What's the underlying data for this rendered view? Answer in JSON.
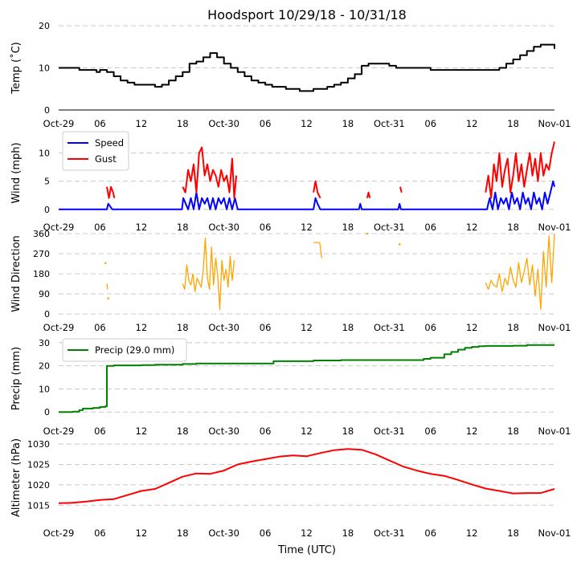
{
  "title": "Hoodsport 10/29/18 - 10/31/18",
  "xlabel": "Time (UTC)",
  "x_ticks": [
    "Oct-29",
    "06",
    "12",
    "18",
    "Oct-30",
    "06",
    "12",
    "18",
    "Oct-31",
    "06",
    "12",
    "18",
    "Nov-01"
  ],
  "x_unit": "hours since 2018-10-29 00:00 UTC",
  "colors": {
    "temp": "#000000",
    "speed": "#0000ff",
    "gust": "#ff0000",
    "direction": "#ffa500",
    "precip": "#008000",
    "altimeter": "#ff0000",
    "grid": "#c8c8c8"
  },
  "chart_data": [
    {
      "type": "line",
      "id": "temp",
      "ylabel": "Temp ($^\\circ$C)",
      "ylabel_text": "Temp (˚C)",
      "ylim": [
        0,
        20
      ],
      "yticks": [
        0,
        10,
        20
      ],
      "xlim": [
        0,
        72
      ],
      "grid": "y-dashed",
      "series": [
        {
          "name": "Temp",
          "color": "#000000",
          "x": [
            0,
            2,
            3,
            5,
            5.5,
            6,
            6.5,
            7,
            8,
            9,
            10,
            11,
            12,
            13,
            14,
            15,
            16,
            17,
            18,
            19,
            20,
            21,
            22,
            22.5,
            23,
            24,
            25,
            26,
            27,
            28,
            29,
            30,
            31,
            32,
            33,
            34,
            35,
            36,
            37,
            38,
            39,
            40,
            41,
            42,
            43,
            44,
            45,
            46,
            47,
            48,
            49,
            50,
            51,
            52,
            53,
            54,
            55,
            56,
            57,
            58,
            59,
            60,
            61,
            62,
            63,
            64,
            65,
            66,
            67,
            68,
            69,
            70,
            71,
            72
          ],
          "y": [
            10,
            10,
            9.5,
            9.5,
            9,
            9.5,
            9.5,
            9,
            8,
            7,
            6.5,
            6,
            6,
            6,
            5.5,
            6,
            7,
            8,
            9,
            11,
            11.5,
            12.5,
            13.5,
            13.5,
            12.5,
            11,
            10,
            9,
            8,
            7,
            6.5,
            6,
            5.5,
            5.5,
            5,
            5,
            4.5,
            4.5,
            5,
            5,
            5.5,
            6,
            6.5,
            7.5,
            8.5,
            10.5,
            11,
            11,
            11,
            10.5,
            10,
            10,
            10,
            10,
            10,
            9.5,
            9.5,
            9.5,
            9.5,
            9.5,
            9.5,
            9.5,
            9.5,
            9.5,
            9.5,
            10,
            11,
            12,
            13,
            14,
            15,
            15.5,
            15.5,
            14.5
          ]
        }
      ]
    },
    {
      "type": "line",
      "id": "wind",
      "ylabel": "Wind (mph)",
      "ylim": [
        -0.6,
        13.5
      ],
      "yticks": [
        0,
        5,
        10
      ],
      "xlim": [
        0,
        72
      ],
      "grid": "y-dashed",
      "legend": "top-left",
      "series": [
        {
          "name": "Speed",
          "color": "#0000ff",
          "x": [
            0,
            7,
            7.2,
            7.8,
            8,
            17.9,
            18.1,
            18.8,
            19.2,
            19.6,
            20,
            20.4,
            20.8,
            21.2,
            21.6,
            22,
            22.4,
            22.8,
            23.2,
            23.6,
            24,
            24.4,
            24.8,
            25.2,
            25.6,
            26,
            37,
            37.3,
            37.6,
            38,
            43.6,
            43.8,
            44,
            49.3,
            49.5,
            49.7,
            62.2,
            62.6,
            63,
            63.4,
            63.8,
            64.2,
            64.6,
            65,
            65.4,
            65.8,
            66.2,
            66.6,
            67,
            67.4,
            67.8,
            68.2,
            68.6,
            69,
            69.4,
            69.8,
            70.2,
            70.6,
            71,
            71.4,
            71.8,
            72
          ],
          "y": [
            0,
            0,
            1,
            0,
            0,
            0,
            2,
            0,
            2,
            0,
            3,
            0,
            2,
            1,
            2,
            0,
            2,
            0,
            2,
            1,
            2,
            0,
            2,
            0,
            2,
            0,
            0,
            2,
            1,
            0,
            0,
            1,
            0,
            0,
            1,
            0,
            0,
            2,
            0,
            3,
            0,
            2,
            1,
            2,
            0,
            3,
            1,
            2,
            0,
            3,
            1,
            2,
            0,
            3,
            1,
            2,
            0,
            3,
            1,
            3,
            5,
            4
          ]
        },
        {
          "name": "Gust",
          "color": "#ff0000",
          "segments": [
            {
              "x": [
                7,
                7.3,
                7.6,
                7.9,
                8.1
              ],
              "y": [
                4,
                2,
                4,
                3,
                2
              ]
            },
            {
              "x": [
                18,
                18.4,
                18.8,
                19.2,
                19.6,
                20,
                20.4,
                20.8,
                21.2,
                21.6,
                22,
                22.4,
                22.8,
                23.2,
                23.6,
                24,
                24.4,
                24.8,
                25.2,
                25.5,
                25.8
              ],
              "y": [
                4,
                3,
                7,
                5,
                8,
                3,
                10,
                11,
                6,
                8,
                5,
                7,
                6,
                4,
                7,
                5,
                6,
                3,
                9,
                2,
                6
              ]
            },
            {
              "x": [
                37,
                37.3,
                37.6,
                38
              ],
              "y": [
                3,
                5,
                3,
                2
              ]
            },
            {
              "x": [
                44.8,
                45,
                45.2
              ],
              "y": [
                2,
                3,
                2
              ]
            },
            {
              "x": [
                49.6,
                49.8
              ],
              "y": [
                4,
                3
              ]
            },
            {
              "x": [
                62,
                62.4,
                62.8,
                63.2,
                63.6,
                64,
                64.4,
                64.8,
                65.2,
                65.6,
                66,
                66.4,
                66.8,
                67.2,
                67.6,
                68,
                68.4,
                68.8,
                69.2,
                69.6,
                70,
                70.4,
                70.8,
                71.2,
                71.6,
                72
              ],
              "y": [
                3,
                6,
                2,
                8,
                5,
                10,
                4,
                7,
                9,
                3,
                6,
                10,
                5,
                8,
                4,
                7,
                10,
                6,
                9,
                5,
                10,
                6,
                8,
                7,
                10,
                12
              ]
            }
          ]
        }
      ]
    },
    {
      "type": "scatter",
      "id": "direction",
      "ylabel": "Wind Direction",
      "ylim": [
        0,
        360
      ],
      "yticks": [
        0,
        90,
        180,
        270,
        360
      ],
      "xlim": [
        0,
        72
      ],
      "grid": "y-dashed",
      "series": [
        {
          "name": "Direction",
          "color": "#ffa500",
          "segments": [
            {
              "x": [
                7,
                7.1
              ],
              "y": [
                135,
                110
              ]
            },
            {
              "x": [
                18,
                18.3,
                18.6,
                18.9,
                19.2,
                19.5,
                19.8,
                20.1,
                20.4,
                20.7,
                21,
                21.3,
                21.6,
                21.9,
                22.2,
                22.5,
                22.8,
                23.1,
                23.4,
                23.7,
                24,
                24.3,
                24.6,
                24.9,
                25.2,
                25.5
              ],
              "y": [
                135,
                110,
                220,
                150,
                130,
                180,
                100,
                160,
                140,
                120,
                200,
                340,
                160,
                110,
                300,
                130,
                250,
                170,
                20,
                240,
                150,
                200,
                120,
                260,
                150,
                240
              ]
            },
            {
              "x": [
                37,
                37.3,
                37.6,
                37.9,
                38.2
              ],
              "y": [
                320,
                320,
                320,
                320,
                250
              ]
            },
            {
              "x": [
                62,
                62.4,
                62.8,
                63.2,
                63.6,
                64,
                64.4,
                64.8,
                65.2,
                65.6,
                66,
                66.4,
                66.8,
                67.2,
                67.6,
                68,
                68.4,
                68.8,
                69.2,
                69.6,
                70,
                70.4,
                70.8,
                71.2,
                71.6,
                72
              ],
              "y": [
                140,
                110,
                150,
                130,
                120,
                180,
                100,
                160,
                130,
                210,
                150,
                120,
                230,
                140,
                190,
                250,
                130,
                220,
                80,
                200,
                20,
                280,
                120,
                350,
                140,
                360
              ]
            }
          ],
          "points": {
            "x": [
              6.8,
              7.2,
              44.8,
              49.5
            ],
            "y": [
              228,
              70,
              360,
              312
            ]
          }
        }
      ]
    },
    {
      "type": "line",
      "id": "precip",
      "ylabel": "Precip (mm)",
      "ylim": [
        -2,
        31
      ],
      "yticks": [
        0,
        10,
        20,
        30
      ],
      "xlim": [
        0,
        72
      ],
      "grid": "y-dashed",
      "legend": "top-left",
      "series": [
        {
          "name": "Precip (29.0 mm)",
          "color": "#008000",
          "x": [
            0,
            2,
            3,
            3.5,
            5,
            6,
            6.8,
            7,
            7.2,
            8,
            12,
            14,
            18,
            20,
            24,
            31,
            31.2,
            36,
            37,
            41,
            44,
            52,
            53,
            54,
            56,
            57,
            58,
            59,
            60,
            61,
            62,
            66,
            68,
            72
          ],
          "y": [
            0,
            0.2,
            0.8,
            1.5,
            1.8,
            2.2,
            2.5,
            20,
            20,
            20.2,
            20.3,
            20.5,
            20.8,
            21,
            21,
            21,
            22,
            22,
            22.3,
            22.5,
            22.5,
            22.5,
            23,
            23.5,
            25,
            26,
            27,
            27.8,
            28.2,
            28.5,
            28.6,
            28.7,
            29,
            29
          ]
        }
      ]
    },
    {
      "type": "line",
      "id": "altimeter",
      "ylabel": "Altimeter (hPa)",
      "ylim": [
        1012.5,
        1031
      ],
      "yticks": [
        1015,
        1020,
        1025,
        1030
      ],
      "xlim": [
        0,
        72
      ],
      "grid": "y-dashed",
      "series": [
        {
          "name": "Altimeter",
          "color": "#ff0000",
          "x": [
            0,
            2,
            4,
            6,
            8,
            10,
            12,
            14,
            16,
            18,
            20,
            22,
            24,
            26,
            28,
            30,
            32,
            34,
            36,
            38,
            40,
            42,
            44,
            46,
            48,
            50,
            52,
            54,
            56,
            58,
            60,
            62,
            64,
            66,
            68,
            70,
            72
          ],
          "y": [
            1015.5,
            1015.6,
            1015.9,
            1016.3,
            1016.5,
            1017.5,
            1018.5,
            1019,
            1020.5,
            1022,
            1022.8,
            1022.7,
            1023.5,
            1025,
            1025.7,
            1026.3,
            1026.9,
            1027.2,
            1027,
            1027.8,
            1028.5,
            1028.8,
            1028.6,
            1027.5,
            1026,
            1024.5,
            1023.5,
            1022.7,
            1022.2,
            1021.2,
            1020.1,
            1019.1,
            1018.5,
            1017.9,
            1018,
            1018,
            1019
          ]
        }
      ]
    }
  ]
}
